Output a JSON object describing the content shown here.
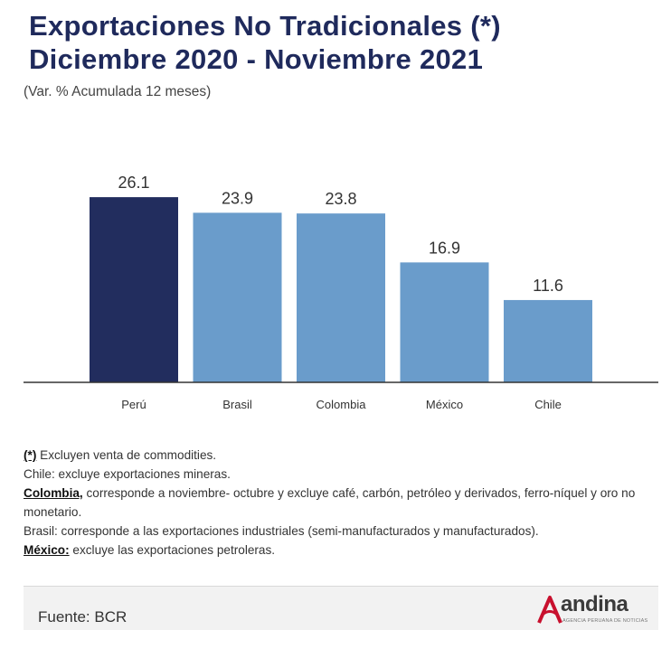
{
  "header": {
    "title_line1": "Exportaciones No Tradicionales (*)",
    "title_line2": "Diciembre 2020 - Noviembre 2021",
    "subtitle": "(Var. % Acumulada 12 meses)"
  },
  "chart_data": {
    "type": "bar",
    "categories": [
      "Perú",
      "Brasil",
      "Colombia",
      "México",
      "Chile"
    ],
    "values": [
      26.1,
      23.9,
      23.8,
      16.9,
      11.6
    ],
    "value_labels": [
      "26.1",
      "23.9",
      "23.8",
      "16.9",
      "11.6"
    ],
    "ylim": [
      0,
      30
    ],
    "grid": false,
    "highlight_color": "#222d5e",
    "bar_color": "#6a9ccb",
    "axis_color": "#333333"
  },
  "notes": {
    "n1_key": "(*)",
    "n1_text": " Excluyen venta de commodities.",
    "n2_text": "Chile: excluye exportaciones mineras.",
    "n3_key": "Colombia,",
    "n3_text": " corresponde a noviembre- octubre y excluye café, carbón, petróleo y derivados, ferro-níquel y oro no monetario.",
    "n4_text": "Brasil: corresponde a las exportaciones industriales (semi-manufacturados y manufacturados).",
    "n5_key": "México:",
    "n5_text": " excluye las exportaciones petroleras."
  },
  "footer": {
    "source": "Fuente: BCR",
    "logo_name": "andina",
    "logo_tagline": "AGENCIA PERUANA DE NOTICIAS",
    "logo_icon": "andina-logo-icon",
    "logo_color": "#c8102e"
  }
}
